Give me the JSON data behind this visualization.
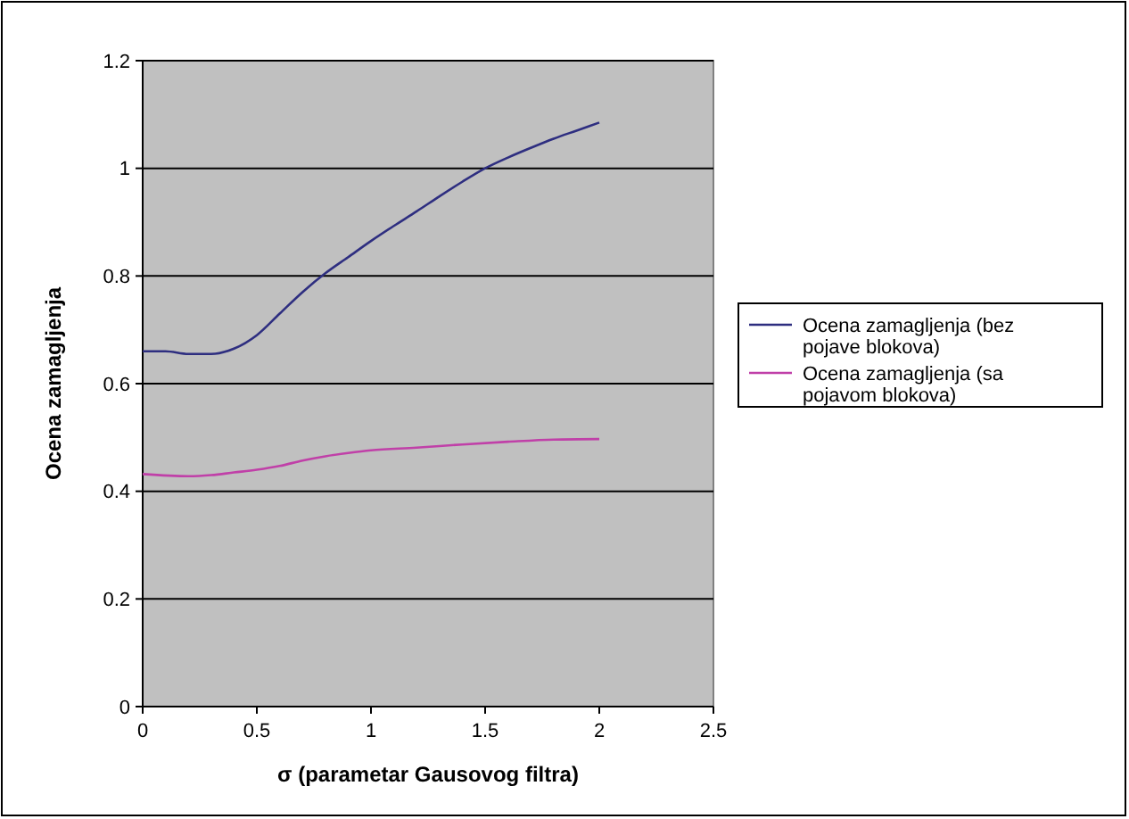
{
  "chart_data": {
    "type": "line",
    "xlabel": "σ (parametar Gausovog filtra)",
    "ylabel": "Ocena zamagljenja",
    "xlim": [
      0,
      2.5
    ],
    "xticks": [
      0,
      0.5,
      1,
      1.5,
      2,
      2.5
    ],
    "ylim": [
      0,
      1.2
    ],
    "yticks": [
      0,
      0.2,
      0.4,
      0.6,
      0.8,
      1,
      1.2
    ],
    "grid": "y",
    "legend": "right",
    "marker": "none",
    "line_style": "solid",
    "series": [
      {
        "name": "Ocena zamagljenja (bez pojave blokova)",
        "color": "#2e2e80",
        "x": [
          0,
          0.1,
          0.2,
          0.3,
          0.4,
          0.5,
          0.6,
          0.7,
          0.8,
          0.9,
          1,
          1.1,
          1.2,
          1.3,
          1.4,
          1.5,
          1.6,
          1.7,
          1.8,
          1.9,
          2
        ],
        "values": [
          0.66,
          0.66,
          0.655,
          0.655,
          0.665,
          0.69,
          0.73,
          0.77,
          0.805,
          0.835,
          0.865,
          0.893,
          0.92,
          0.948,
          0.975,
          1,
          1.02,
          1.038,
          1.055,
          1.07,
          1.085
        ]
      },
      {
        "name": "Ocena zamagljenja (sa pojavom blokova)",
        "color": "#c040a8",
        "x": [
          0,
          0.2,
          0.3,
          0.4,
          0.5,
          0.6,
          0.7,
          0.8,
          0.9,
          1,
          1.2,
          1.4,
          1.6,
          1.8,
          2
        ],
        "values": [
          0.432,
          0.428,
          0.43,
          0.435,
          0.44,
          0.447,
          0.457,
          0.465,
          0.471,
          0.476,
          0.481,
          0.487,
          0.492,
          0.496,
          0.497
        ]
      }
    ]
  }
}
